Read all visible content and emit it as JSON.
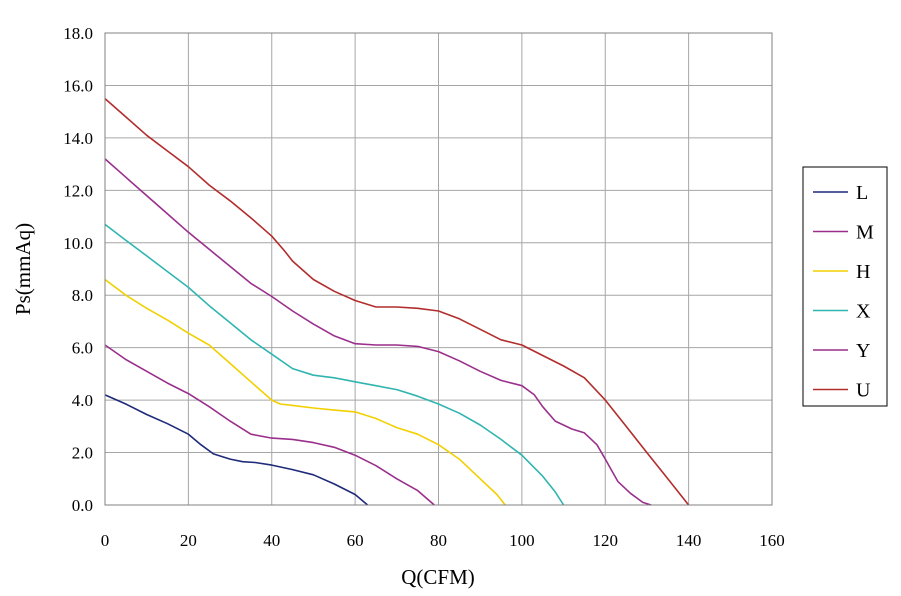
{
  "chart_data": {
    "type": "line",
    "xlabel": "Q(CFM)",
    "ylabel": "Ps(mmAq)",
    "xlim": [
      0,
      160
    ],
    "ylim": [
      0,
      18
    ],
    "xticks": [
      0,
      20,
      40,
      60,
      80,
      100,
      120,
      140,
      160
    ],
    "yticks": [
      "0.0",
      "2.0",
      "4.0",
      "6.0",
      "8.0",
      "10.0",
      "12.0",
      "14.0",
      "16.0",
      "18.0"
    ],
    "grid": true,
    "legend_position": "right",
    "series": [
      {
        "name": "L",
        "color": "#1f2a7a",
        "points": [
          [
            0,
            4.2
          ],
          [
            5,
            3.85
          ],
          [
            10,
            3.45
          ],
          [
            15,
            3.1
          ],
          [
            20,
            2.7
          ],
          [
            23,
            2.3
          ],
          [
            26,
            1.95
          ],
          [
            30,
            1.75
          ],
          [
            33,
            1.65
          ],
          [
            36,
            1.62
          ],
          [
            40,
            1.52
          ],
          [
            45,
            1.35
          ],
          [
            50,
            1.15
          ],
          [
            55,
            0.8
          ],
          [
            60,
            0.4
          ],
          [
            63,
            0.0
          ]
        ]
      },
      {
        "name": "M",
        "color": "#9a2f8c",
        "points": [
          [
            0,
            6.1
          ],
          [
            5,
            5.55
          ],
          [
            10,
            5.1
          ],
          [
            15,
            4.65
          ],
          [
            20,
            4.25
          ],
          [
            25,
            3.75
          ],
          [
            30,
            3.2
          ],
          [
            35,
            2.7
          ],
          [
            40,
            2.55
          ],
          [
            45,
            2.5
          ],
          [
            50,
            2.38
          ],
          [
            55,
            2.2
          ],
          [
            60,
            1.9
          ],
          [
            65,
            1.5
          ],
          [
            70,
            1.0
          ],
          [
            75,
            0.55
          ],
          [
            79,
            0.0
          ]
        ]
      },
      {
        "name": "H",
        "color": "#f2d000",
        "points": [
          [
            0,
            8.6
          ],
          [
            5,
            8.0
          ],
          [
            10,
            7.5
          ],
          [
            15,
            7.05
          ],
          [
            20,
            6.55
          ],
          [
            25,
            6.1
          ],
          [
            30,
            5.4
          ],
          [
            35,
            4.7
          ],
          [
            40,
            4.0
          ],
          [
            42,
            3.85
          ],
          [
            45,
            3.8
          ],
          [
            50,
            3.7
          ],
          [
            55,
            3.62
          ],
          [
            60,
            3.55
          ],
          [
            65,
            3.3
          ],
          [
            70,
            2.95
          ],
          [
            75,
            2.7
          ],
          [
            80,
            2.3
          ],
          [
            85,
            1.75
          ],
          [
            90,
            1.0
          ],
          [
            94,
            0.4
          ],
          [
            96,
            0.0
          ]
        ]
      },
      {
        "name": "X",
        "color": "#2fb5b0",
        "points": [
          [
            0,
            10.7
          ],
          [
            5,
            10.1
          ],
          [
            10,
            9.5
          ],
          [
            15,
            8.9
          ],
          [
            20,
            8.3
          ],
          [
            25,
            7.6
          ],
          [
            30,
            6.95
          ],
          [
            35,
            6.3
          ],
          [
            40,
            5.75
          ],
          [
            45,
            5.2
          ],
          [
            50,
            4.95
          ],
          [
            55,
            4.85
          ],
          [
            60,
            4.7
          ],
          [
            65,
            4.55
          ],
          [
            70,
            4.4
          ],
          [
            75,
            4.15
          ],
          [
            80,
            3.85
          ],
          [
            85,
            3.5
          ],
          [
            90,
            3.05
          ],
          [
            95,
            2.5
          ],
          [
            100,
            1.9
          ],
          [
            105,
            1.1
          ],
          [
            108,
            0.5
          ],
          [
            110,
            0.0
          ]
        ]
      },
      {
        "name": "Y",
        "color": "#9a2f8c",
        "points": [
          [
            0,
            13.2
          ],
          [
            5,
            12.5
          ],
          [
            10,
            11.8
          ],
          [
            15,
            11.1
          ],
          [
            20,
            10.4
          ],
          [
            25,
            9.75
          ],
          [
            30,
            9.1
          ],
          [
            35,
            8.45
          ],
          [
            40,
            7.95
          ],
          [
            45,
            7.4
          ],
          [
            50,
            6.9
          ],
          [
            55,
            6.45
          ],
          [
            60,
            6.15
          ],
          [
            65,
            6.1
          ],
          [
            70,
            6.1
          ],
          [
            75,
            6.05
          ],
          [
            80,
            5.85
          ],
          [
            85,
            5.5
          ],
          [
            90,
            5.1
          ],
          [
            95,
            4.75
          ],
          [
            100,
            4.55
          ],
          [
            103,
            4.2
          ],
          [
            105,
            3.75
          ],
          [
            108,
            3.2
          ],
          [
            112,
            2.9
          ],
          [
            115,
            2.75
          ],
          [
            118,
            2.3
          ],
          [
            120,
            1.75
          ],
          [
            123,
            0.9
          ],
          [
            126,
            0.45
          ],
          [
            129,
            0.1
          ],
          [
            131,
            0.0
          ]
        ]
      },
      {
        "name": "U",
        "color": "#b22d2d",
        "points": [
          [
            0,
            15.5
          ],
          [
            5,
            14.8
          ],
          [
            10,
            14.1
          ],
          [
            15,
            13.5
          ],
          [
            20,
            12.9
          ],
          [
            25,
            12.2
          ],
          [
            30,
            11.6
          ],
          [
            35,
            10.95
          ],
          [
            40,
            10.25
          ],
          [
            43,
            9.7
          ],
          [
            45,
            9.3
          ],
          [
            50,
            8.6
          ],
          [
            55,
            8.15
          ],
          [
            60,
            7.8
          ],
          [
            65,
            7.55
          ],
          [
            70,
            7.55
          ],
          [
            75,
            7.5
          ],
          [
            80,
            7.4
          ],
          [
            85,
            7.1
          ],
          [
            90,
            6.7
          ],
          [
            95,
            6.3
          ],
          [
            100,
            6.1
          ],
          [
            105,
            5.7
          ],
          [
            110,
            5.3
          ],
          [
            115,
            4.85
          ],
          [
            120,
            4.0
          ],
          [
            125,
            3.0
          ],
          [
            130,
            2.0
          ],
          [
            135,
            1.0
          ],
          [
            140,
            0.0
          ]
        ]
      }
    ]
  }
}
